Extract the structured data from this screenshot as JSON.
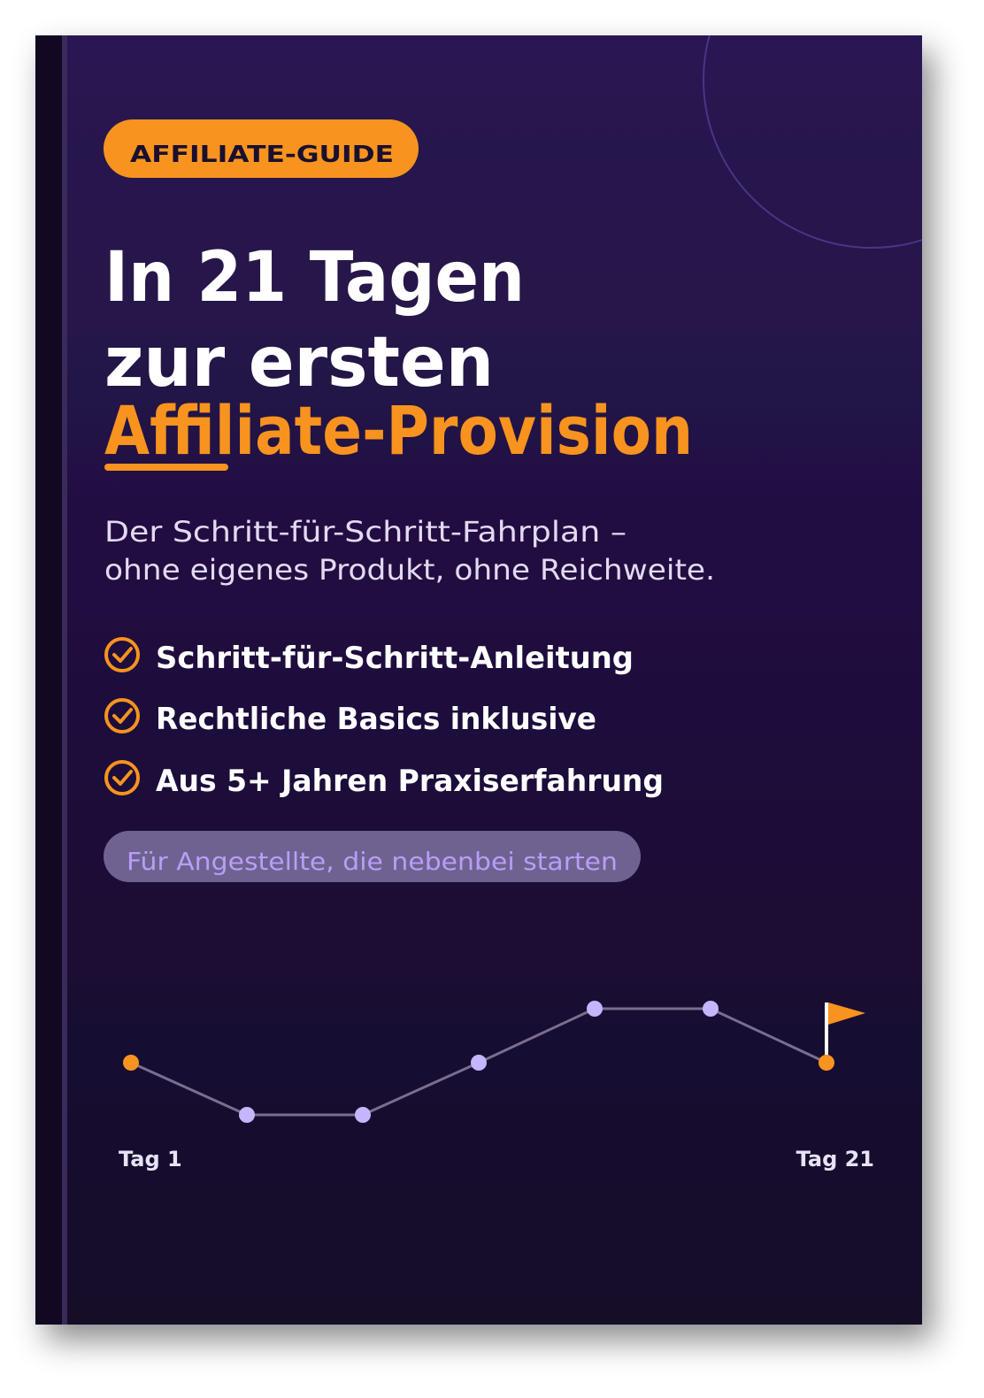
{
  "badge": "AFFILIATE-GUIDE",
  "title": {
    "line1": "In 21 Tagen",
    "line2": "zur ersten",
    "highlight": "Affiliate-Provision"
  },
  "subtitle": [
    "Der Schritt-für-Schritt-Fahrplan –",
    "ohne eigenes Produkt, ohne Reichweite."
  ],
  "features": [
    "Schritt-für-Schritt-Anleitung",
    "Rechtliche Basics inklusive",
    "Aus 5+ Jahren Praxiserfahrung"
  ],
  "audience": "Für Angestellte, die nebenbei starten",
  "timeline": {
    "start": "Tag 1",
    "end": "Tag 21"
  }
}
